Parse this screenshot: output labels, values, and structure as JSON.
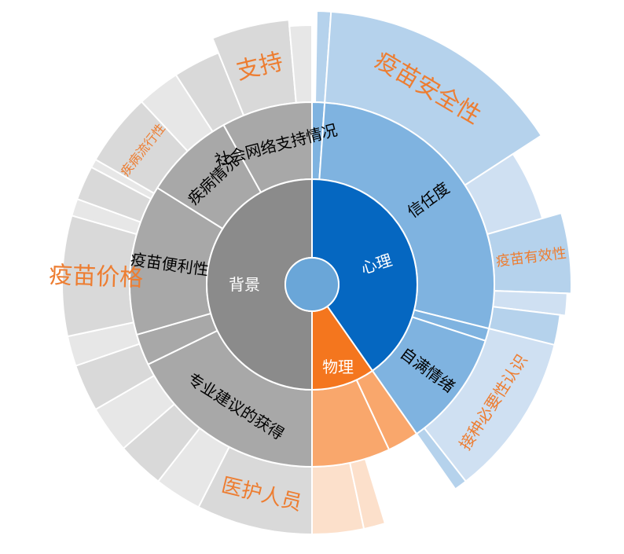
{
  "chart_data": {
    "type": "sunburst",
    "colors": {
      "psych_inner": "#0567c1",
      "psych_mid": "#7fb3e0",
      "psych_outer": "#b5d2ec",
      "psych_outer_light": "#cfe0f2",
      "physical_inner": "#f4761e",
      "physical_mid": "#f9a76c",
      "physical_outer": "#fbc8a4",
      "physical_outer_light": "#fce0cb",
      "background_inner": "#8b8b8b",
      "background_mid": "#a8a8a8",
      "background_outer": "#d9d9d9",
      "background_outer_light": "#e7e7e7",
      "center": "#6aa6d8",
      "label_orange": "#ed7d31"
    },
    "center_label": "",
    "inner": [
      {
        "id": "psych",
        "label": "心理",
        "start": 0,
        "end": 145
      },
      {
        "id": "physical",
        "label": "物理",
        "start": 145,
        "end": 180
      },
      {
        "id": "background",
        "label": "背景",
        "start": 180,
        "end": 360
      }
    ],
    "middle": [
      {
        "id": "m-psy-0",
        "label": "",
        "start": 0,
        "end": 4,
        "color": "psych_mid"
      },
      {
        "id": "trust",
        "label": "信任度",
        "start": 4,
        "end": 104,
        "color": "psych_mid"
      },
      {
        "id": "m-psy-1",
        "label": "",
        "start": 104,
        "end": 108,
        "color": "psych_mid"
      },
      {
        "id": "self-efficacy",
        "label": "自满情绪",
        "start": 108,
        "end": 145,
        "color": "psych_mid"
      },
      {
        "id": "m-phy-0",
        "label": "",
        "start": 145,
        "end": 155,
        "color": "physical_mid"
      },
      {
        "id": "m-phy-1",
        "label": "",
        "start": 155,
        "end": 180,
        "color": "physical_mid"
      },
      {
        "id": "professional-advice",
        "label": "专业建议的获得",
        "start": 180,
        "end": 244,
        "color": "background_mid"
      },
      {
        "id": "m-bg-0",
        "label": "",
        "start": 244,
        "end": 254,
        "color": "background_mid"
      },
      {
        "id": "vaccine-convenience",
        "label": "疫苗便利性",
        "start": 254,
        "end": 302,
        "color": "background_mid"
      },
      {
        "id": "disease-situation",
        "label": "疾病情况",
        "start": 302,
        "end": 331,
        "color": "background_mid"
      },
      {
        "id": "social-support",
        "label": "社会网络支持情况",
        "start": 331,
        "end": 360,
        "color": "background_mid"
      }
    ],
    "outer": [
      {
        "id": "o-psy-0",
        "label": "",
        "start": 1,
        "end": 4,
        "outer": 348,
        "color": "psych_outer"
      },
      {
        "id": "vaccine-safety",
        "label": "疫苗安全性",
        "start": 4,
        "end": 57,
        "outer": 348,
        "color": "psych_outer",
        "label_color": "label_orange",
        "label_size": 30
      },
      {
        "id": "o-psy-1",
        "label": "",
        "start": 57,
        "end": 74,
        "outer": 305,
        "color": "psych_outer_light"
      },
      {
        "id": "vaccine-efficacy",
        "label": "疫苗有效性",
        "start": 74,
        "end": 92,
        "outer": 330,
        "color": "psych_outer",
        "label_color": "label_orange",
        "label_size": 18
      },
      {
        "id": "o-psy-2",
        "label": "",
        "start": 92,
        "end": 97,
        "outer": 325,
        "color": "psych_outer_light"
      },
      {
        "id": "o-psy-3",
        "label": "",
        "start": 97,
        "end": 104,
        "outer": 318,
        "color": "psych_outer"
      },
      {
        "id": "vaccination-necessity",
        "label": "接种必要性认识",
        "start": 104,
        "end": 142,
        "outer": 318,
        "color": "psych_outer_light",
        "label_color": "label_orange",
        "label_size": 20
      },
      {
        "id": "o-psy-4",
        "label": "",
        "start": 142,
        "end": 145,
        "outer": 318,
        "color": "psych_outer"
      },
      {
        "id": "o-phy-0",
        "label": "",
        "start": 168,
        "end": 180,
        "outer": 318,
        "color": "physical_outer_light"
      },
      {
        "id": "o-phy-1",
        "label": "",
        "start": 163,
        "end": 168,
        "outer": 318,
        "color": "physical_outer_light"
      },
      {
        "id": "medical-staff",
        "label": "医护人员",
        "start": 180,
        "end": 207,
        "outer": 318,
        "color": "background_outer",
        "label_color": "label_orange",
        "label_size": 26
      },
      {
        "id": "o-bg-0",
        "label": "",
        "start": 207,
        "end": 218,
        "outer": 318,
        "color": "background_outer_light"
      },
      {
        "id": "o-bg-1",
        "label": "",
        "start": 218,
        "end": 229,
        "outer": 318,
        "color": "background_outer"
      },
      {
        "id": "o-bg-2",
        "label": "",
        "start": 229,
        "end": 240,
        "outer": 318,
        "color": "background_outer_light"
      },
      {
        "id": "o-bg-3",
        "label": "",
        "start": 240,
        "end": 251,
        "outer": 318,
        "color": "background_outer"
      },
      {
        "id": "o-bg-4",
        "label": "",
        "start": 251,
        "end": 258,
        "outer": 318,
        "color": "background_outer_light"
      },
      {
        "id": "vaccine-price",
        "label": "疫苗价格",
        "start": 258,
        "end": 286,
        "outer": 318,
        "color": "background_outer",
        "label_color": "label_orange",
        "label_size": 30
      },
      {
        "id": "o-bg-5",
        "label": "",
        "start": 286,
        "end": 290,
        "outer": 318,
        "color": "background_outer_light"
      },
      {
        "id": "o-bg-6",
        "label": "",
        "start": 290,
        "end": 298,
        "outer": 318,
        "color": "background_outer"
      },
      {
        "id": "o-bg-7",
        "label": "",
        "start": 298,
        "end": 300,
        "outer": 318,
        "color": "background_outer_light"
      },
      {
        "id": "disease-prevalence",
        "label": "疾病流行性",
        "start": 300,
        "end": 317,
        "outer": 318,
        "color": "background_outer",
        "label_color": "label_orange",
        "label_size": 16
      },
      {
        "id": "o-bg-8",
        "label": "",
        "start": 317,
        "end": 327,
        "outer": 318,
        "color": "background_outer_light"
      },
      {
        "id": "o-bg-9",
        "label": "",
        "start": 327,
        "end": 338,
        "outer": 318,
        "color": "background_outer"
      },
      {
        "id": "support",
        "label": "支持",
        "start": 338,
        "end": 355,
        "outer": 338,
        "color": "background_outer",
        "label_color": "label_orange",
        "label_size": 30
      },
      {
        "id": "o-bg-10",
        "label": "",
        "start": 355,
        "end": 360,
        "outer": 330,
        "color": "background_outer_light"
      }
    ]
  }
}
